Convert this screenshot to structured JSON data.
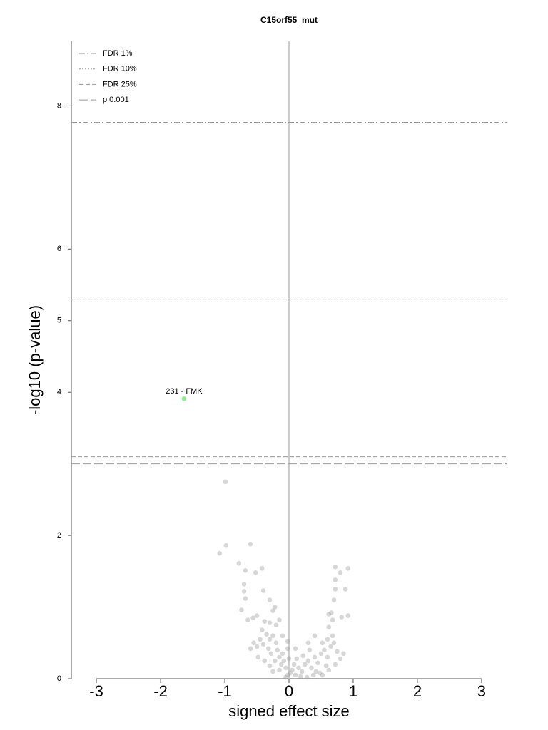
{
  "chart_data": {
    "type": "scatter",
    "title": "C15orf55_mut",
    "x_label": "signed effect size",
    "y_label": "-log10 (p-value)",
    "xlim": [
      -3.39,
      3.39
    ],
    "ylim": [
      0,
      8.9
    ],
    "xticks": [
      -3,
      -2,
      -1,
      0,
      1,
      2,
      3
    ],
    "yticks": [
      0,
      2,
      4,
      5,
      6,
      8
    ],
    "vline": 0,
    "thresholds": [
      {
        "name": "FDR 1%",
        "value": 7.77,
        "dash": "dashdot"
      },
      {
        "name": "FDR 10%",
        "value": 5.3,
        "dash": "dotted"
      },
      {
        "name": "FDR 25%",
        "value": 3.1,
        "dash": "dashed"
      },
      {
        "name": "p 0.001",
        "value": 3.0,
        "dash": "longdash"
      }
    ],
    "points": {
      "color": "#9a9a9a",
      "x": [
        -0.99,
        -0.98,
        -1.08,
        -0.6,
        -0.78,
        -0.68,
        -0.52,
        -0.42,
        -0.7,
        -0.7,
        -0.68,
        -0.4,
        -0.3,
        -0.22,
        -0.74,
        -0.5,
        -0.64,
        -0.56,
        0.72,
        0.92,
        0.8,
        0.72,
        0.72,
        0.88,
        0.7,
        0.62,
        0.82,
        0.92,
        0.66,
        -0.35,
        -0.3,
        -0.25,
        -0.2,
        -0.4,
        -0.32,
        -0.45,
        -0.5,
        -0.55,
        -0.6,
        -0.28,
        -0.18,
        -0.15,
        -0.22,
        -0.1,
        -0.12,
        -0.05,
        -0.08,
        -0.3,
        -0.25,
        -0.15,
        -0.02,
        -0.05,
        0.02,
        0.05,
        0.1,
        0.15,
        0.2,
        0.25,
        0.3,
        0.35,
        0.4,
        0.45,
        0.5,
        0.55,
        0.6,
        0.65,
        0.7,
        0.75,
        0.8,
        0.72,
        0.62,
        0.48,
        0.38,
        0.28,
        0.18,
        0.08,
        0.12,
        0.22,
        0.32,
        0.42,
        0.52,
        0.58,
        0.68,
        0.6,
        0.52,
        -0.02,
        0.0,
        -0.38,
        -0.3,
        -0.42,
        -0.48,
        -0.38,
        -0.2,
        -0.1,
        -0.02,
        0.3,
        0.4,
        0.85,
        0.62,
        0.68,
        0.1,
        -0.25,
        -0.15
      ],
      "y": [
        2.75,
        1.86,
        1.75,
        1.88,
        1.61,
        1.51,
        1.48,
        1.54,
        1.32,
        1.22,
        1.12,
        1.23,
        1.1,
        1.0,
        0.96,
        0.88,
        0.82,
        0.85,
        1.56,
        1.54,
        1.48,
        1.38,
        1.25,
        1.25,
        1.1,
        0.9,
        0.86,
        0.88,
        0.92,
        0.62,
        0.55,
        0.6,
        0.5,
        0.48,
        0.42,
        0.55,
        0.45,
        0.5,
        0.42,
        0.35,
        0.4,
        0.3,
        0.25,
        0.35,
        0.2,
        0.15,
        0.25,
        0.18,
        0.1,
        0.12,
        0.05,
        0.02,
        0.08,
        0.12,
        0.05,
        0.15,
        0.1,
        0.2,
        0.25,
        0.15,
        0.3,
        0.22,
        0.35,
        0.4,
        0.3,
        0.45,
        0.5,
        0.38,
        0.28,
        0.2,
        0.12,
        0.08,
        0.05,
        0.02,
        0.03,
        0.2,
        0.28,
        0.32,
        0.4,
        0.1,
        0.05,
        0.18,
        0.6,
        0.55,
        0.5,
        0.42,
        0.28,
        0.8,
        0.78,
        0.68,
        0.3,
        0.25,
        0.75,
        0.6,
        0.52,
        0.5,
        0.6,
        0.35,
        0.72,
        0.82,
        0.42,
        0.95,
        0.82
      ]
    },
    "highlight": {
      "color": "#90ee90",
      "x": [
        -1.635
      ],
      "y": [
        3.91
      ],
      "labels": [
        "231 - FMK"
      ]
    }
  }
}
